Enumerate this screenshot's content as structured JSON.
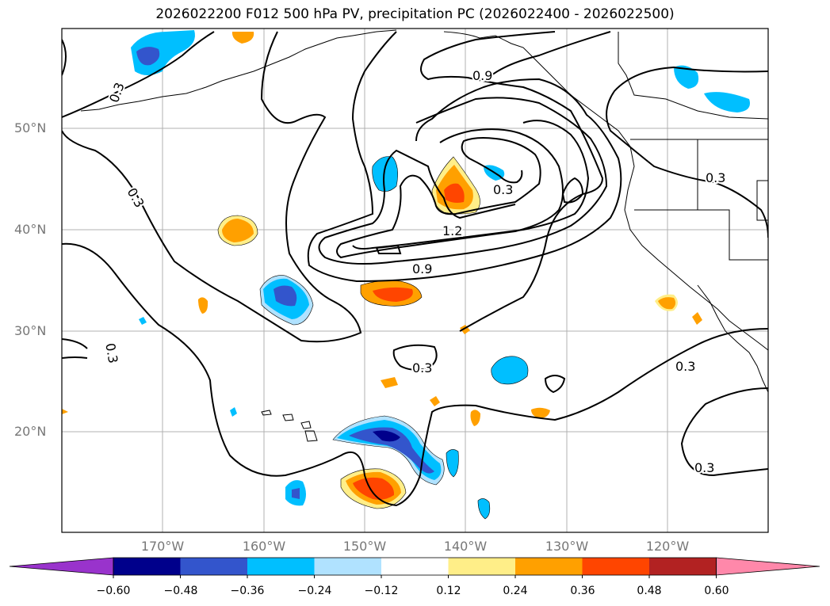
{
  "title": "2026022200 F012 500 hPa PV, precipitation PC (2026022400 - 2026022500)",
  "axes": {
    "lat_labels": [
      {
        "text": "50°N"
      },
      {
        "text": "40°N"
      },
      {
        "text": "30°N"
      },
      {
        "text": "20°N"
      }
    ],
    "lon_labels": [
      {
        "text": "170°W"
      },
      {
        "text": "160°W"
      },
      {
        "text": "150°W"
      },
      {
        "text": "140°W"
      },
      {
        "text": "130°W"
      },
      {
        "text": "120°W"
      }
    ]
  },
  "contour_labels": [
    "0.3",
    "0.9",
    "1.2",
    "0.9",
    "0.3",
    "0.3",
    "0.3",
    "0.3",
    "0.3",
    "0.3",
    "0.3"
  ],
  "colorbar": {
    "ticks": [
      "−0.60",
      "−0.48",
      "−0.36",
      "−0.24",
      "−0.12",
      "0.12",
      "0.24",
      "0.36",
      "0.48",
      "0.60"
    ],
    "colors": [
      "#9933cc",
      "#00008b",
      "#3355cc",
      "#00bfff",
      "#b0e2ff",
      "#ffffff",
      "#ffee88",
      "#ffa000",
      "#ff4500",
      "#b22222",
      "#ff88aa"
    ]
  }
}
